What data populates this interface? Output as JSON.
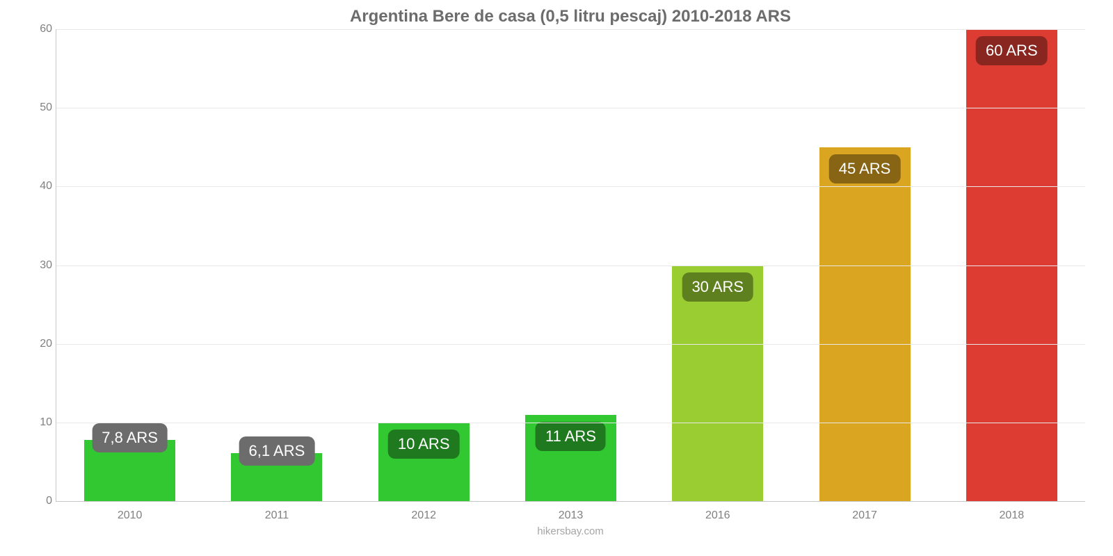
{
  "chart": {
    "type": "bar",
    "title": "Argentina Bere de casa (0,5 litru pescaj) 2010-2018 ARS",
    "title_fontsize": 24,
    "title_color": "#6c6c6c",
    "background_color": "#ffffff",
    "axis_color": "#c7c7c7",
    "grid_color": "#e8e8e8",
    "tick_label_color": "#808080",
    "tick_label_fontsize": 16,
    "ylim_min": 0,
    "ylim_max": 60,
    "ytick_step": 10,
    "yticks": [
      0,
      10,
      20,
      30,
      40,
      50,
      60
    ],
    "bar_width_pct": 62,
    "bar_label_fontsize": 22,
    "bar_label_text_color": "#ffffff",
    "bars": [
      {
        "category": "2010",
        "value": 7.8,
        "display": "7,8 ARS",
        "bar_color": "#32c832",
        "label_bg": "#6c6c6c",
        "label_in_bar": false
      },
      {
        "category": "2011",
        "value": 6.1,
        "display": "6,1 ARS",
        "bar_color": "#32c832",
        "label_bg": "#6c6c6c",
        "label_in_bar": false
      },
      {
        "category": "2012",
        "value": 10,
        "display": "10 ARS",
        "bar_color": "#32c832",
        "label_bg": "#1f7a1f",
        "label_in_bar": true
      },
      {
        "category": "2013",
        "value": 11,
        "display": "11 ARS",
        "bar_color": "#32c832",
        "label_bg": "#1f7a1f",
        "label_in_bar": true
      },
      {
        "category": "2016",
        "value": 30,
        "display": "30 ARS",
        "bar_color": "#9acd32",
        "label_bg": "#5f801f",
        "label_in_bar": true
      },
      {
        "category": "2017",
        "value": 45,
        "display": "45 ARS",
        "bar_color": "#daa520",
        "label_bg": "#876515",
        "label_in_bar": true
      },
      {
        "category": "2018",
        "value": 60,
        "display": "60 ARS",
        "bar_color": "#dc3c32",
        "label_bg": "#8a2620",
        "label_in_bar": true
      }
    ],
    "source": "hikersbay.com",
    "source_color": "#a5a5a5",
    "source_fontsize": 15
  }
}
